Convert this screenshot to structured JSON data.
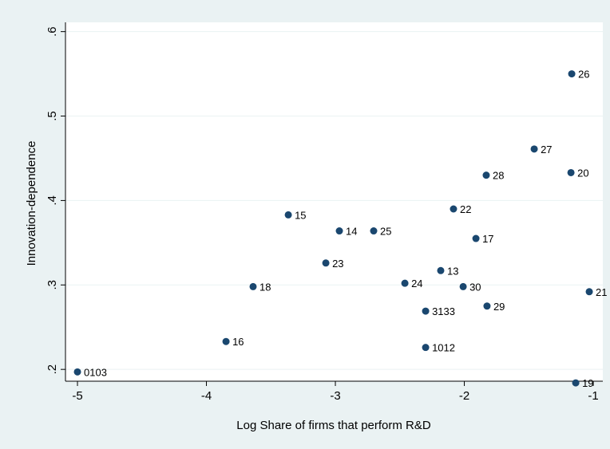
{
  "chart_data": {
    "type": "scatter",
    "x_label": "Log Share of firms that perform R&D",
    "y_label": "Innovation-dependence",
    "labels": [
      "0103",
      "16",
      "18",
      "15",
      "14",
      "23",
      "25",
      "24",
      "22",
      "13",
      "3133",
      "1012",
      "30",
      "17",
      "28",
      "29",
      "27",
      "26",
      "20",
      "21",
      "19"
    ],
    "x": [
      -5.0,
      -3.848,
      -3.638,
      -3.365,
      -2.969,
      -3.074,
      -2.703,
      -2.461,
      -2.084,
      -2.183,
      -2.3,
      -2.3,
      -2.009,
      -1.91,
      -1.83,
      -1.824,
      -1.458,
      -1.167,
      -1.173,
      -1.031,
      -1.136
    ],
    "values": [
      0.197,
      0.233,
      0.298,
      0.383,
      0.364,
      0.326,
      0.364,
      0.302,
      0.39,
      0.317,
      0.269,
      0.226,
      0.298,
      0.355,
      0.43,
      0.275,
      0.461,
      0.55,
      0.433,
      0.292,
      0.184
    ],
    "color": "#1a476f",
    "xlim": [
      -5.093,
      -0.926
    ],
    "ylim": [
      0.186,
      0.611
    ],
    "xticks": [
      -5,
      -4,
      -3,
      -2,
      -1
    ],
    "yticks": [
      {
        "value": 0.2,
        "label": ".2"
      },
      {
        "value": 0.3,
        "label": ".3"
      },
      {
        "value": 0.4,
        "label": ".4"
      },
      {
        "value": 0.5,
        "label": ".5"
      },
      {
        "value": 0.6,
        "label": ".6"
      }
    ],
    "grid": true
  }
}
